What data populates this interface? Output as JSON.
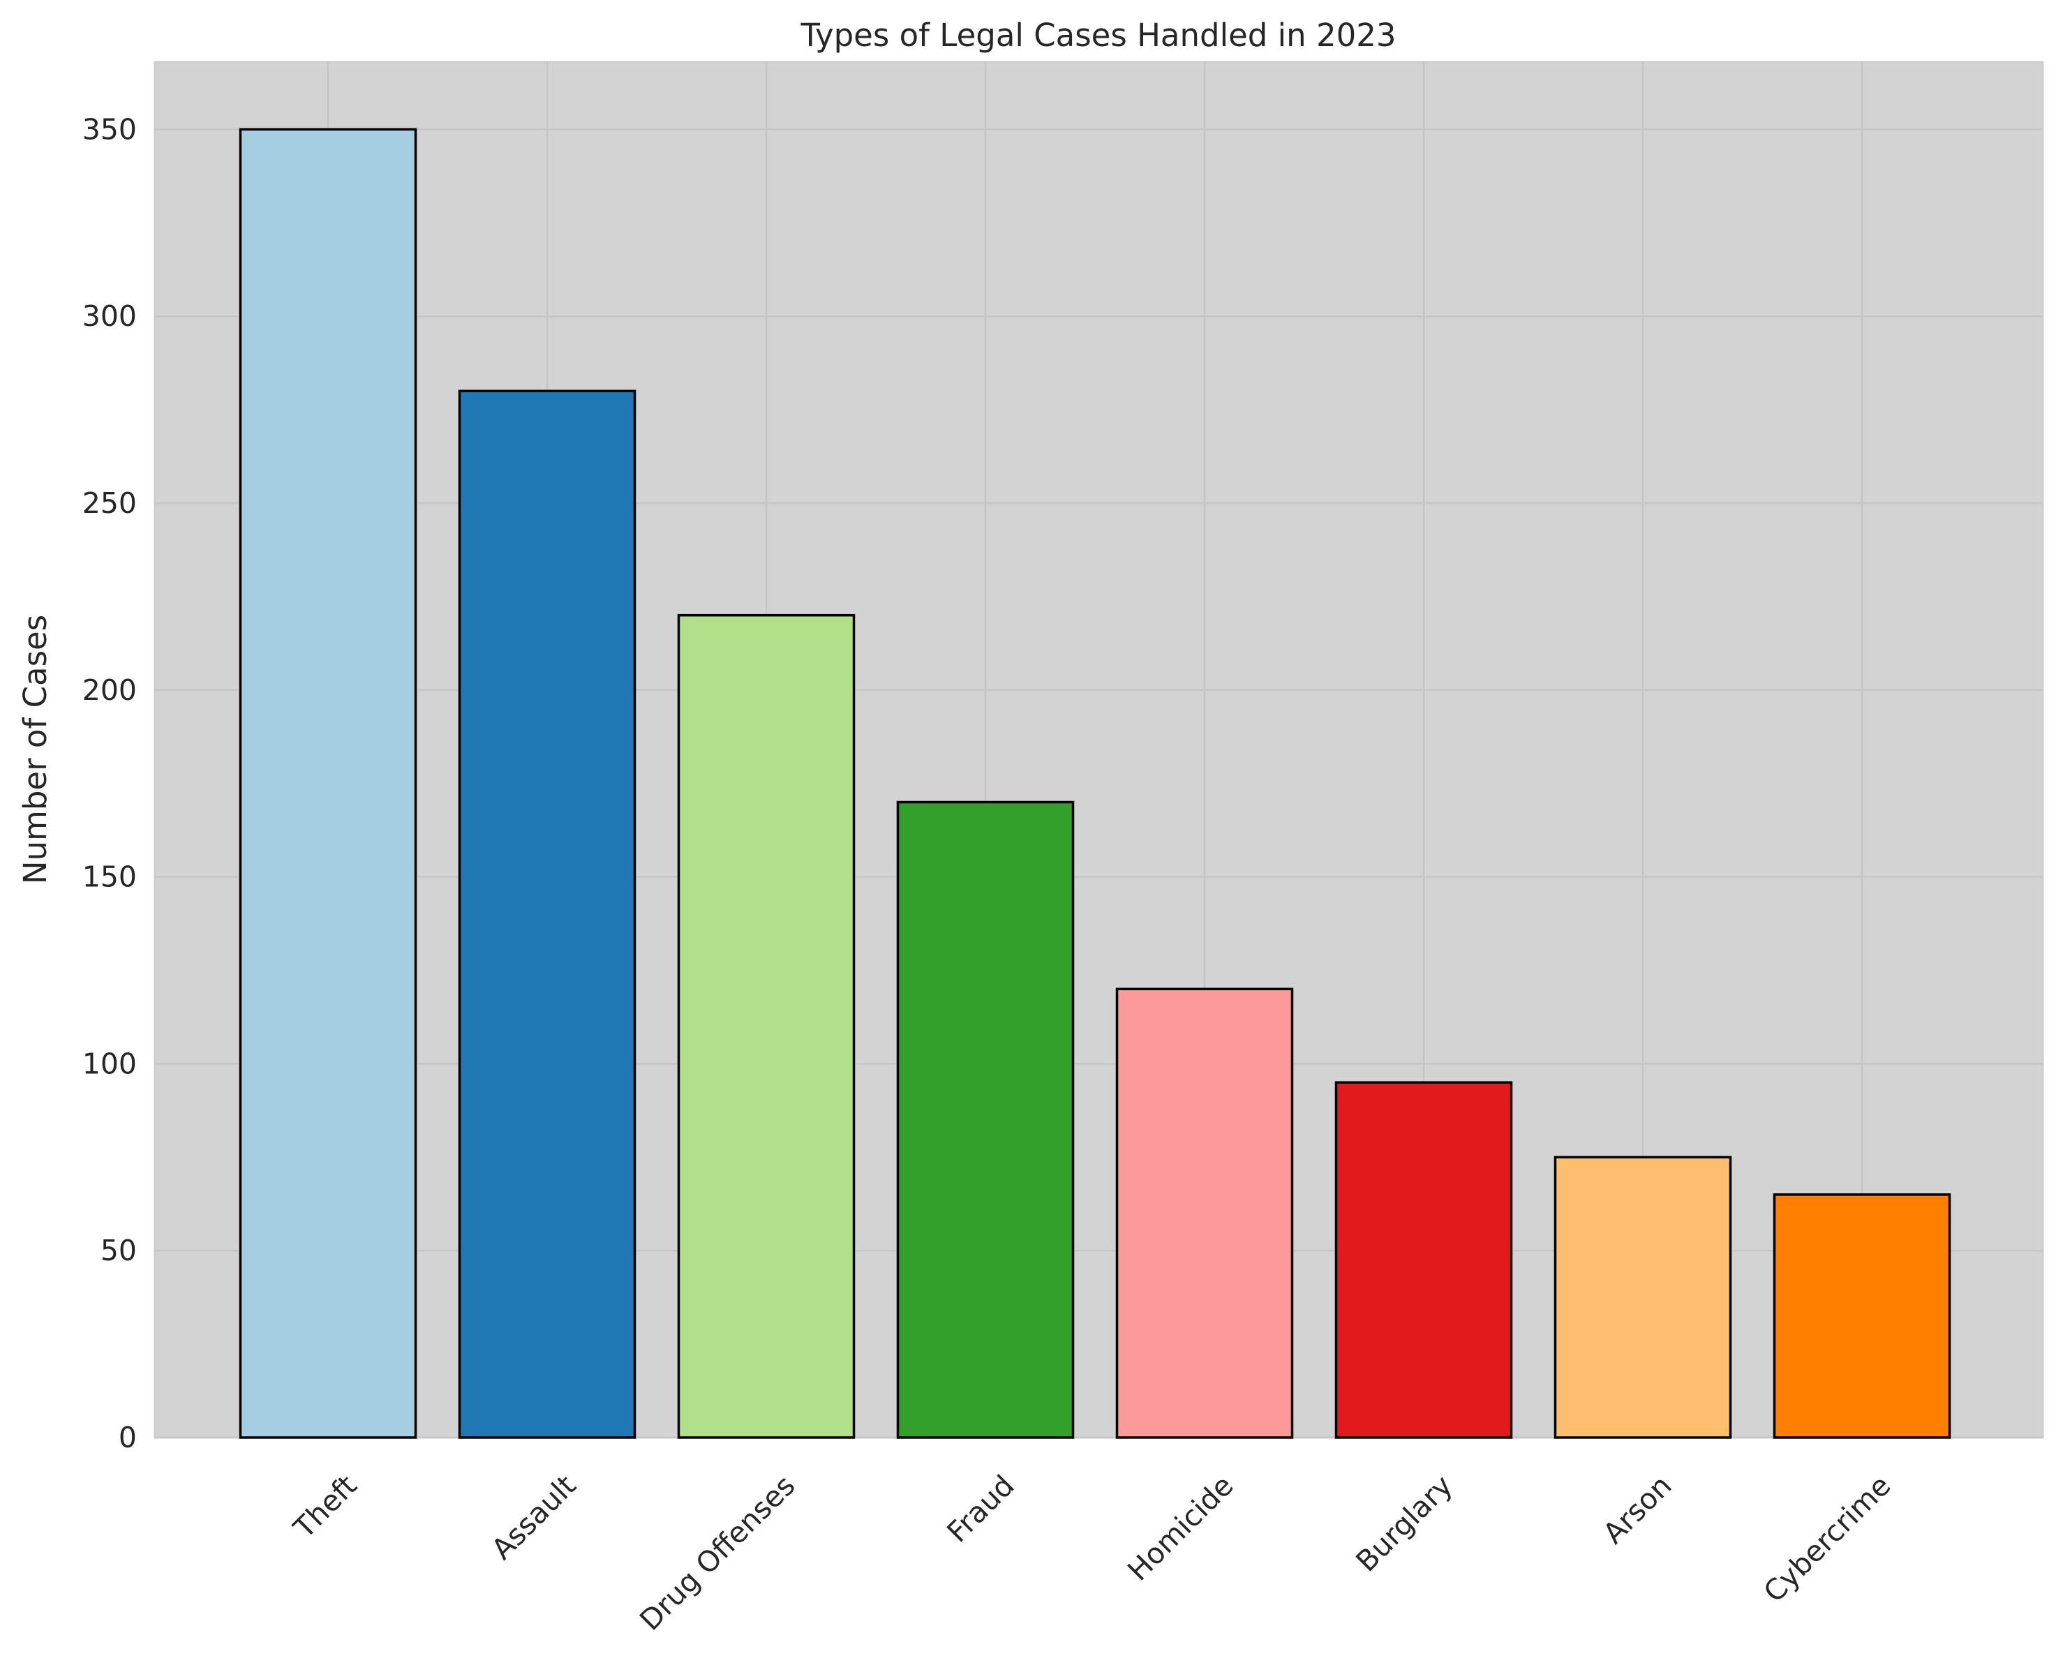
{
  "chart_data": {
    "type": "bar",
    "title": "Types of Legal Cases Handled in 2023",
    "xlabel": "",
    "ylabel": "Number of Cases",
    "categories": [
      "Theft",
      "Assault",
      "Drug Offenses",
      "Fraud",
      "Homicide",
      "Burglary",
      "Arson",
      "Cybercrime"
    ],
    "values": [
      350,
      280,
      220,
      170,
      120,
      95,
      75,
      65
    ],
    "colors": [
      "#a6cee3",
      "#1f78b4",
      "#b2df8a",
      "#33a02c",
      "#fb9a99",
      "#e31a1c",
      "#fdbf6f",
      "#ff7f00"
    ],
    "ylim": [
      0,
      368
    ],
    "yticks": [
      0,
      50,
      100,
      150,
      200,
      250,
      300,
      350
    ],
    "grid": true,
    "legend": "none",
    "background_color": "#d3d3d3",
    "edge_color": "#000000"
  }
}
